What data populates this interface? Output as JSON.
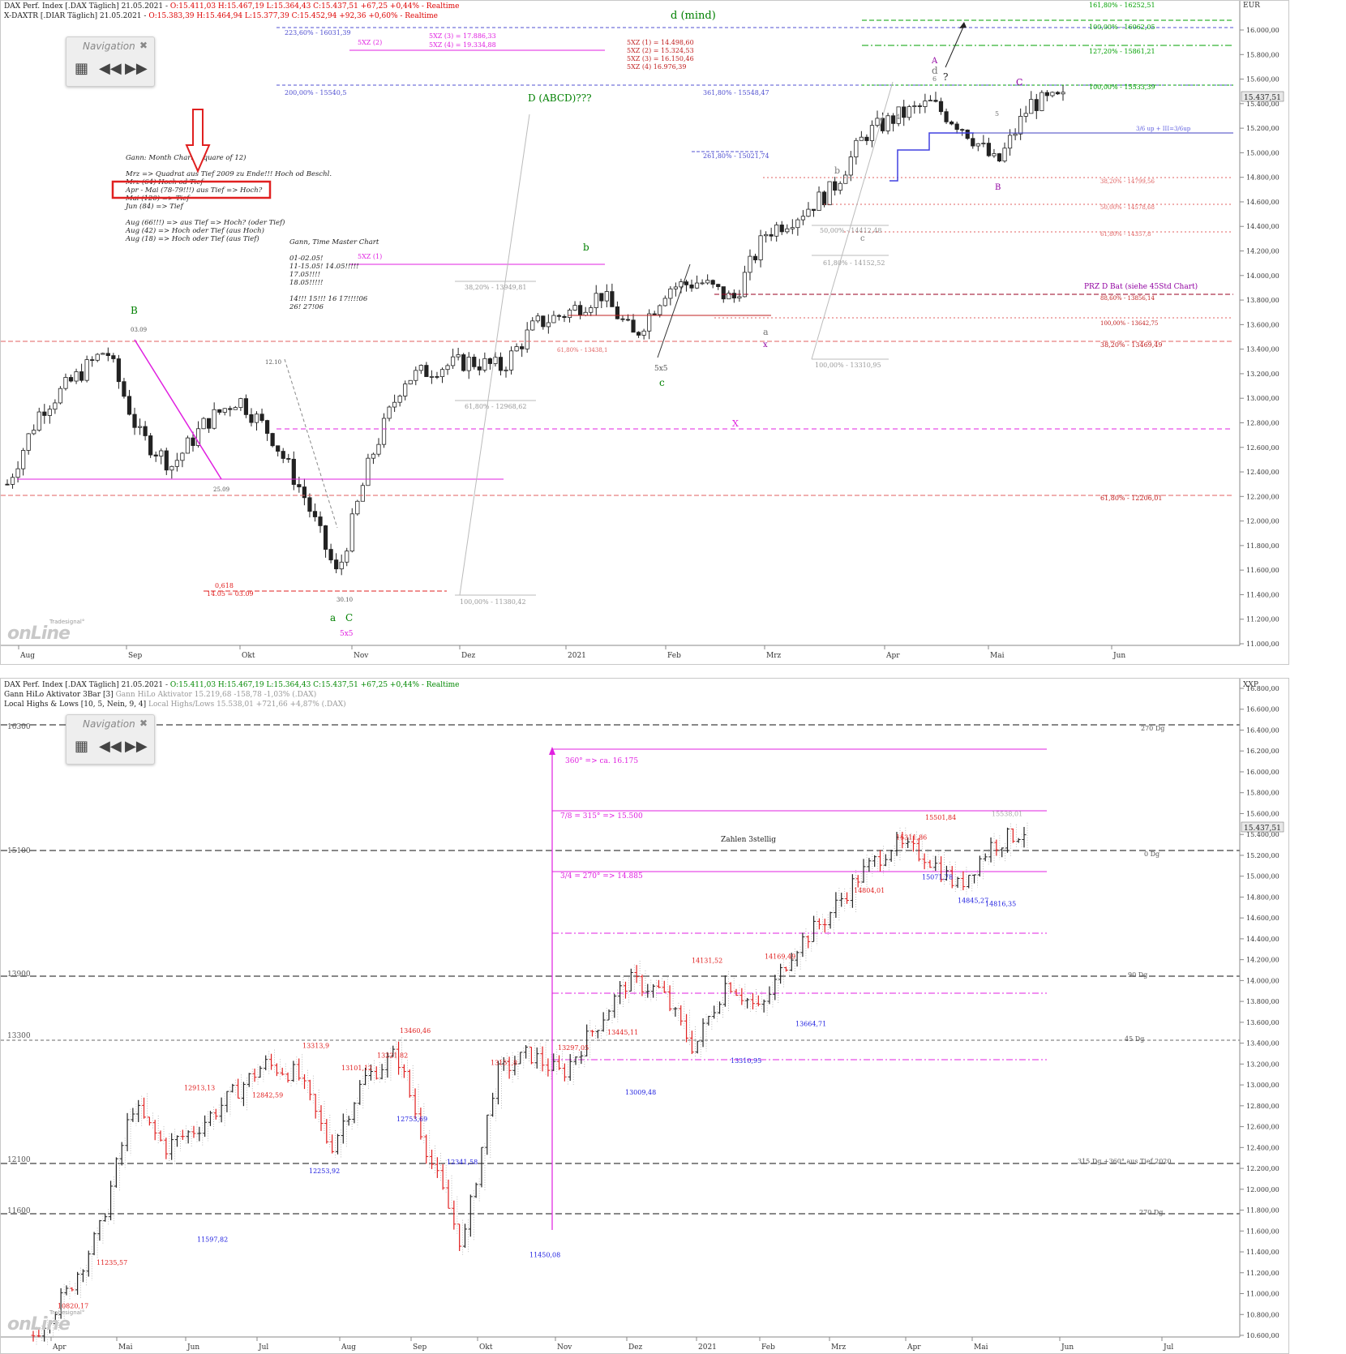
{
  "top": {
    "header1": {
      "name": "DAX Perf. Index [.DAX Täglich] 21.05.2021 - ",
      "ohlc": "O:15.411,03 H:15.467,19 L:15.364,43 C:15.437,51 +67,25 +0,44% - Realtime"
    },
    "header2": {
      "name": "X-DAXTR [.DIAR Täglich] 21.05.2021 - ",
      "ohlc": "O:15.383,39 H:15.464,94 L:15.377,39 C:15.452,94 +92,36 +0,60% - Realtime"
    },
    "currency": "EUR",
    "price_label": "15.437,51",
    "months": [
      "Aug",
      "Sep",
      "Okt",
      "Nov",
      "Dez",
      "2021",
      "Feb",
      "Mrz",
      "Apr",
      "Mai",
      "Jun"
    ],
    "y_ticks": [
      "11.000,00",
      "11.200,00",
      "11.400,00",
      "11.600,00",
      "11.800,00",
      "12.000,00",
      "12.200,00",
      "12.400,00",
      "12.600,00",
      "12.800,00",
      "13.000,00",
      "13.200,00",
      "13.400,00",
      "13.600,00",
      "13.800,00",
      "14.000,00",
      "14.200,00",
      "14.400,00",
      "14.600,00",
      "14.800,00",
      "15.000,00",
      "15.200,00",
      "15.400,00",
      "15.600,00",
      "15.800,00",
      "16.000,00"
    ],
    "fib_right": [
      "161,80% - 16252,51",
      "100,00% - 16062,05",
      "127,20% - 15861,21",
      "100,00% - 15533,39",
      "38,20% - 14799,56",
      "50,00% - 14578,68",
      "61,80% - 14357,8",
      "88,60% - 13856,14",
      "100,00% - 13642,75",
      "38,20% - 13469,49",
      "61,80% - 12206,01"
    ],
    "fib_mid": [
      "223,60% - 16031,39",
      "200,00% - 15540,5",
      "361,80% - 15548,47",
      "261,80% - 15021,74",
      "38,20% - 13949,81",
      "61,80% - 12968,62",
      "100,00% - 11380,42",
      "50,00% - 14412,48",
      "61,80% - 14152,52",
      "100,00% - 13310,95",
      "61,80% - 13438,1"
    ],
    "sxz_top": [
      "5XZ (2)",
      "5XZ (3) = 17.886,33",
      "5XZ (4) = 19.334,88"
    ],
    "sxz_mid": [
      "5XZ (1) = 14.498,60",
      "5XZ (2) = 15.324,53",
      "5XZ (3) = 16.150,46",
      "5XZ (4) 16.976,39"
    ],
    "sxz1": "5XZ (1)",
    "wave_labels": {
      "d_mind": "d (mind)",
      "abcd": "D (ABCD)???",
      "B": "B",
      "b1": "b",
      "b2": "b",
      "c1": "c",
      "c2": "c",
      "a_low": "a",
      "C_low": "C",
      "x1": "x",
      "X": "X",
      "a2": "a",
      "sxs1": "5x5",
      "sxs2": "5x5",
      "A": "A",
      "d": "d",
      "six": "6",
      "q": "?",
      "C2": "C",
      "B2": "B",
      "five": "5",
      "four": "4"
    },
    "gann_month": {
      "title": "Gann: Month Chart (Square of 12)",
      "lines": [
        "Mrz => Quadrat aus Tief 2009 zu Ende!!! Hoch od Beschl.",
        "Mrz (64) Hoch od Tief",
        "Apr - Mai (78-79!!!) aus Tief => Hoch?",
        "Mai (120) => Tief",
        "Jun (84) => Tief",
        "",
        "Aug (66!!!) => aus Tief => Hoch? (oder Tief)",
        "Aug (42) => Hoch oder Tief (aus Hoch)",
        "Aug (18) => Hoch oder Tief (aus Tief)"
      ]
    },
    "gann_time": {
      "title": "Gann, Time Master Chart",
      "lines": [
        "01-02.05!",
        "11-15.05! 14.05!!!!!",
        "17.05!!!!",
        "18.05!!!!!",
        "",
        "14!!! 15!!! 16  17!!!!06",
        "26! 27!06"
      ]
    },
    "misc": {
      "d0309": "03.09",
      "d2509": "25.09",
      "d1210": "12.10",
      "d3010": "30.10",
      "fib618": "0,618",
      "dates1405": "14.05 = 03.09",
      "prz": "PRZ D Bat (siehe 45Std Chart)",
      "gann_up": "3/6 up + III=3/6up",
      "onehundred": "100,00% - 15533,39"
    },
    "nav_title": "Navigation",
    "logo_small": "Tradesignal°",
    "logo_big": "onLine"
  },
  "bottom": {
    "header1": {
      "name": "DAX Perf. Index [.DAX Täglich] 21.05.2021 - ",
      "ohlc": "O:15.411,03 H:15.467,19 L:15.364,43 C:15.437,51 +67,25 +0,44% - Realtime"
    },
    "header2": {
      "name": "Gann HiLo Aktivator 3Bar [3] ",
      "ohlc": "Gann HiLo Aktivator 15.219,68 -158,78 -1,03% (.DAX)"
    },
    "header3": {
      "name": "Local Highs & Lows [10, 5, Nein, 9, 4] ",
      "ohlc": "Local Highs/Lows 15.538,01 +721,66 +4,87% (.DAX)"
    },
    "currency": "XXP",
    "price_label": "15.437,51",
    "months": [
      "Apr",
      "Mai",
      "Jun",
      "Jul",
      "Aug",
      "Sep",
      "Okt",
      "Nov",
      "Dez",
      "2021",
      "Feb",
      "Mrz",
      "Apr",
      "Mai",
      "Jun",
      "Jul"
    ],
    "y_ticks": [
      "10.600,00",
      "10.800,00",
      "11.000,00",
      "11.200,00",
      "11.400,00",
      "11.600,00",
      "11.800,00",
      "12.000,00",
      "12.200,00",
      "12.400,00",
      "12.600,00",
      "12.800,00",
      "13.000,00",
      "13.200,00",
      "13.400,00",
      "13.600,00",
      "13.800,00",
      "14.000,00",
      "14.200,00",
      "14.400,00",
      "14.600,00",
      "14.800,00",
      "15.000,00",
      "15.200,00",
      "15.400,00",
      "15.600,00",
      "15.800,00",
      "16.000,00",
      "16.200,00",
      "16.400,00",
      "16.600,00",
      "16.800,00"
    ],
    "left_levels": [
      "16300",
      "15100",
      "13900",
      "13300",
      "12100",
      "11600"
    ],
    "right_deg": [
      "270 Dg",
      "0 Dg",
      "90 Dg",
      "45 Dg",
      "315 Dg +360° aus Tief 2020",
      "270 Dg"
    ],
    "gann_labels": [
      "360° => ca. 16.175",
      "7/8 = 315° => 15.500",
      "3/4 = 270° => 14.885"
    ],
    "zahlen": "Zahlen 3stellig",
    "highs": [
      "10820,17",
      "11235,57",
      "12913,13",
      "12842,59",
      "13313,9",
      "13101,12",
      "13221,82",
      "13460,46",
      "13151,8",
      "13297,05",
      "13445,11",
      "14131,52",
      "14169,49",
      "14804,01",
      "15311,86",
      "15501,84",
      "15538,01"
    ],
    "lows": [
      "11597,82",
      "12253,92",
      "12753,69",
      "12341,58",
      "11450,08",
      "13009,48",
      "13310,95",
      "13664,71",
      "15071,78",
      "14845,27",
      "14816,35"
    ],
    "nav_title": "Navigation",
    "logo_small": "Tradesignal°",
    "logo_big": "onLine"
  },
  "chart_data": [
    {
      "type": "candlestick",
      "title": "DAX Perf. Index [.DAX Täglich]",
      "x_range": [
        "Aug 2020",
        "Jun 2021"
      ],
      "ylim": [
        11000,
        16200
      ],
      "series": [
        {
          "name": "DAX Perf. Index",
          "points": [
            [
              "Aug",
              12300
            ],
            [
              "Aug",
              12900
            ],
            [
              "Sep",
              13150
            ],
            [
              "Sep",
              13400
            ],
            [
              "Sep",
              12700
            ],
            [
              "Sep",
              12450
            ],
            [
              "Okt",
              12800
            ],
            [
              "Okt",
              13000
            ],
            [
              "Okt",
              12700
            ],
            [
              "Okt",
              12200
            ],
            [
              "Nov",
              11550
            ],
            [
              "Nov",
              12500
            ],
            [
              "Nov",
              13150
            ],
            [
              "Nov",
              13250
            ],
            [
              "Dez",
              13300
            ],
            [
              "Dez",
              13250
            ],
            [
              "Dez",
              13600
            ],
            [
              "2021",
              13700
            ],
            [
              "2021",
              13850
            ],
            [
              "2021",
              13500
            ],
            [
              "Feb",
              13900
            ],
            [
              "Feb",
              13950
            ],
            [
              "Feb",
              13800
            ],
            [
              "Mrz",
              14350
            ],
            [
              "Mrz",
              14500
            ],
            [
              "Mrz",
              14700
            ],
            [
              "Apr",
              15150
            ],
            [
              "Apr",
              15300
            ],
            [
              "Apr",
              15400
            ],
            [
              "Mai",
              15200
            ],
            [
              "Mai",
              14900
            ],
            [
              "Mai",
              15400
            ],
            [
              "Mai",
              15437.51
            ]
          ]
        }
      ]
    },
    {
      "type": "bar",
      "title": "DAX Perf. Index [.DAX Täglich] with Gann HiLo Aktivator and Local Highs & Lows",
      "x_range": [
        "Apr 2020",
        "Jul 2021"
      ],
      "ylim": [
        10600,
        16800
      ],
      "local_highs": [
        10820.17,
        11235.57,
        12913.13,
        12842.59,
        13313.9,
        13101.12,
        13221.82,
        13460.46,
        13151.8,
        13297.05,
        13445.11,
        14131.52,
        14169.49,
        14804.01,
        15311.86,
        15501.84,
        15538.01
      ],
      "local_lows": [
        11597.82,
        12253.92,
        12753.69,
        12341.58,
        11450.08,
        13009.48,
        13310.95,
        13664.71,
        15071.78,
        14845.27,
        14816.35
      ]
    }
  ]
}
